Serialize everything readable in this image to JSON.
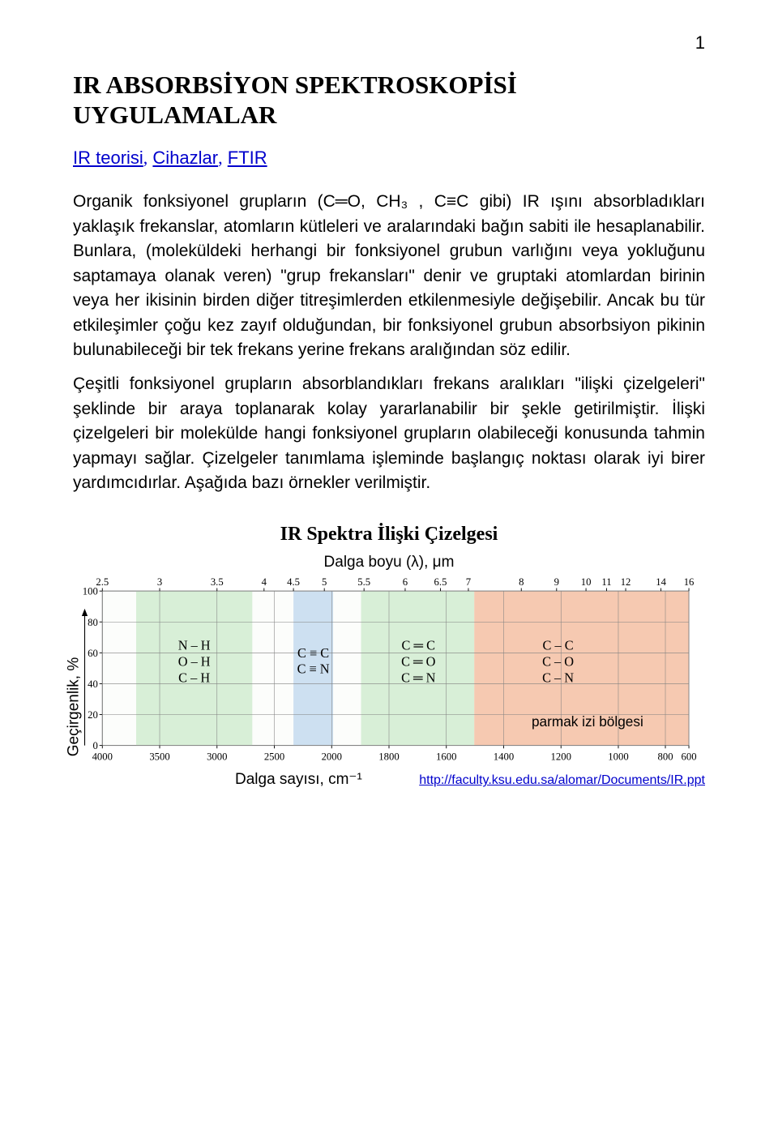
{
  "page_number": "1",
  "title_line1": "IR ABSORBSİYON SPEKTROSKOPİSİ",
  "title_line2": "UYGULAMALAR",
  "links": {
    "l1": "IR teorisi",
    "l2": "Cihazlar",
    "l3": "FTIR",
    "comma": ","
  },
  "p1": "Organik fonksiyonel grupların (C═O, CH₃ , C≡C gibi) IR ışını absorbladıkları yaklaşık frekanslar, atomların kütleleri ve aralarındaki bağın sabiti ile hesaplanabilir. Bunlara, (moleküldeki herhangi bir fonksiyonel grubun varlığını veya yokluğunu saptamaya olanak veren) \"grup frekansları\" denir ve gruptaki atomlardan birinin veya her ikisinin birden diğer titreşimlerden etkilenmesiyle değişebilir. Ancak bu tür etkileşimler çoğu kez zayıf olduğundan, bir fonksiyonel grubun absorbsiyon pikinin bulunabileceği bir tek frekans yerine frekans aralığından söz edilir.",
  "p2": "Çeşitli fonksiyonel grupların absorblandıkları frekans aralıkları \"ilişki çizelgeleri\" şeklinde bir araya toplanarak kolay yararlanabilir bir şekle getirilmiştir. İlişki çizelgeleri bir molekülde hangi fonksiyonel grupların olabileceği konusunda tahmin yapmayı sağlar. Çizelgeler tanımlama işleminde başlangıç noktası olarak iyi birer yardımcıdırlar. Aşağıda bazı örnekler verilmiştir.",
  "chart": {
    "title": "IR Spektra İlişki Çizelgesi",
    "sub": "Dalga boyu (λ), μm",
    "ylabel": "Geçirgenlik, %",
    "xlabel": "Dalga sayısı, cm⁻¹",
    "source": "http://faculty.ksu.edu.sa/alomar/Documents/IR.ppt",
    "top_ticks": [
      "2.5",
      "3",
      "3.5",
      "4",
      "4.5",
      "5",
      "5.5",
      "6",
      "6.5",
      "7",
      "8",
      "9",
      "10",
      "11",
      "12",
      "14",
      "16"
    ],
    "top_tick_x": [
      40,
      118,
      196,
      260,
      300,
      342,
      396,
      452,
      500,
      538,
      610,
      658,
      698,
      726,
      752,
      800,
      838
    ],
    "y_ticks": [
      "100",
      "80",
      "60",
      "40",
      "20",
      "0"
    ],
    "y_tick_vals": [
      20,
      62,
      104,
      146,
      188,
      230
    ],
    "x_ticks": [
      "4000",
      "3500",
      "3000",
      "2500",
      "2000",
      "1800",
      "1600",
      "1400",
      "1200",
      "1000",
      "800",
      "600"
    ],
    "x_tick_vals": [
      40,
      118,
      196,
      274,
      352,
      430,
      508,
      586,
      664,
      742,
      820,
      838
    ],
    "grid_color": "#808080",
    "plot_bg": "#fcfdfb",
    "region_green": "#d8efd7",
    "region_blue": "#cde0f1",
    "region_orange": "#f6c9b1",
    "inner_text": {
      "g1": [
        "N – H",
        "O – H",
        "C – H"
      ],
      "b1": [
        "C ≡ C",
        "C ≡ N"
      ],
      "g2": [
        "C ═ C",
        "C ═ O",
        "C ═ N"
      ],
      "o1": [
        "C – C",
        "C – O",
        "C – N"
      ],
      "footer": "parmak izi bölgesi"
    }
  }
}
